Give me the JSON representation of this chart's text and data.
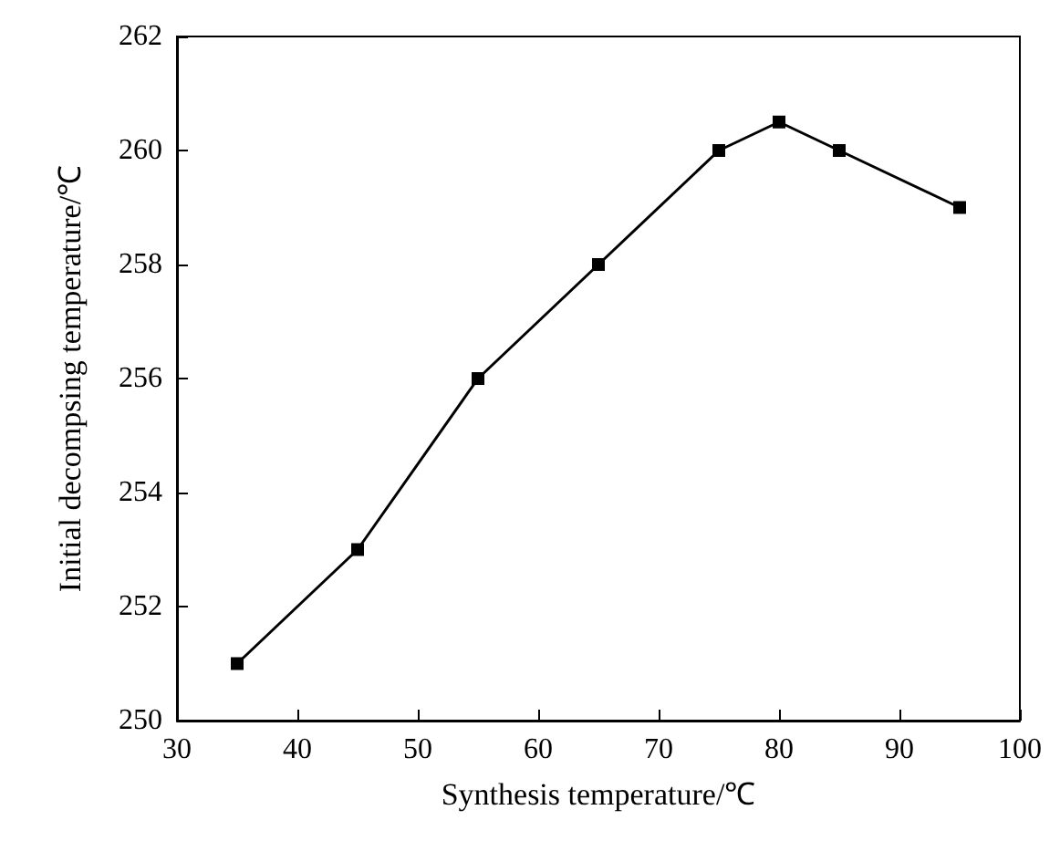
{
  "chart_data": {
    "type": "line",
    "xlabel": "Synthesis temperature/℃",
    "ylabel": "Initial decompsing temperature/℃",
    "x": [
      35,
      45,
      55,
      65,
      75,
      80,
      85,
      95
    ],
    "series": [
      {
        "color": "#000000",
        "values": [
          251,
          253,
          256,
          258,
          260,
          260.5,
          260,
          259
        ]
      }
    ],
    "xlim": [
      30,
      100
    ],
    "xticks": [
      30,
      40,
      50,
      60,
      70,
      80,
      90,
      100
    ],
    "ylim": [
      250,
      262
    ],
    "yticks": [
      250,
      252,
      254,
      256,
      258,
      260,
      262
    ],
    "grid": false,
    "marker": "square",
    "line_style": "solid"
  }
}
